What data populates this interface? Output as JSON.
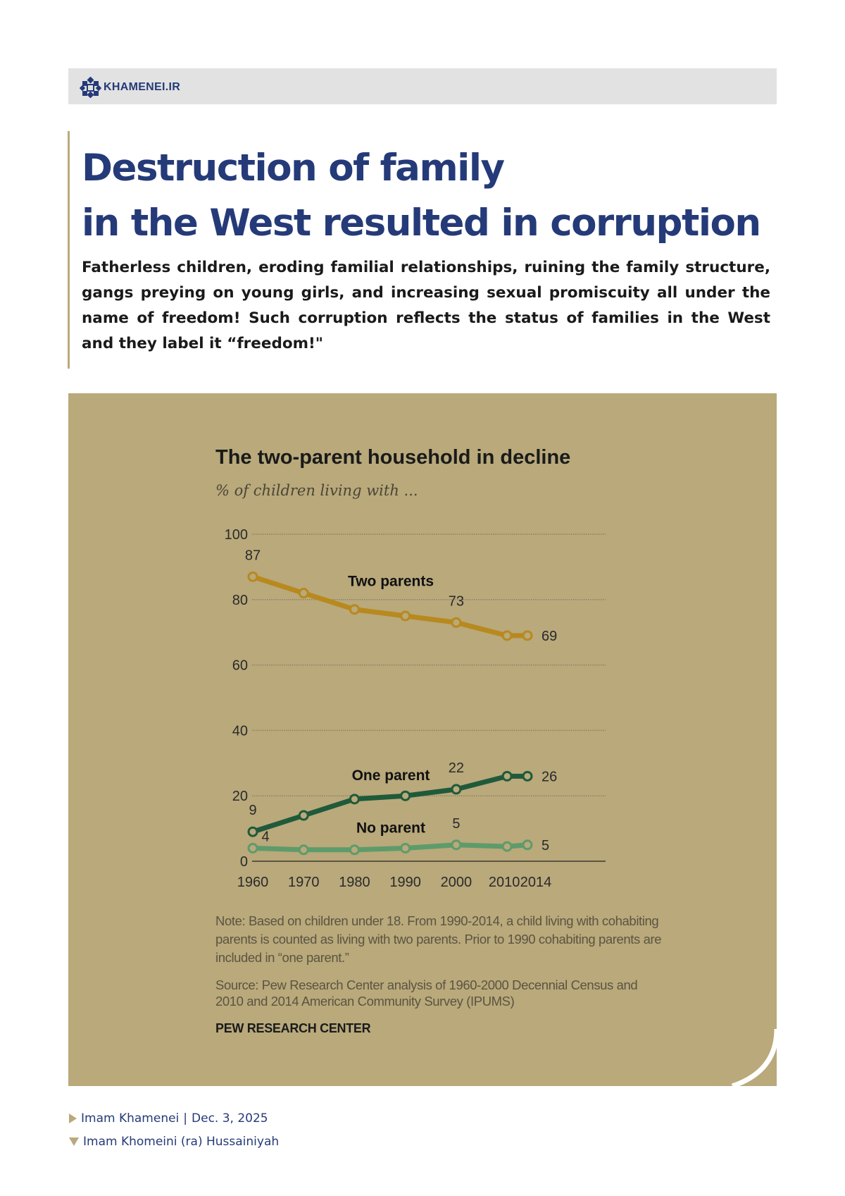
{
  "header": {
    "logo_text": "KHAMENEI.IR",
    "logo_icon": "star-pattern-logo"
  },
  "article": {
    "title_lines": [
      "Destruction of family",
      "in the West resulted in corruption"
    ],
    "lede": "Fatherless children, eroding familial relationships, ruining the family structure, gangs preying on young girls, and increasing sexual promiscuity all under the name of freedom! Such corruption reflects the status of families in the West and they label it “freedom!\""
  },
  "chart_data": {
    "type": "line",
    "title": "The two-parent household in decline",
    "subtitle": "% of children living with ...",
    "x": [
      1960,
      1970,
      1980,
      1990,
      2000,
      2010,
      2014
    ],
    "x_tick_labels": [
      "1960",
      "1970",
      "1980",
      "1990",
      "2000",
      "2010",
      "2014"
    ],
    "y_ticks": [
      0,
      20,
      40,
      60,
      80,
      100
    ],
    "ylim": [
      0,
      100
    ],
    "grid": "horizontal dotted",
    "series": [
      {
        "name": "Two parents",
        "color": "#b8891e",
        "values": [
          87,
          82,
          77,
          75,
          73,
          69,
          69
        ],
        "data_labels": {
          "1960": "87",
          "2000": "73",
          "2014": "69"
        }
      },
      {
        "name": "One parent",
        "color": "#1f5a3a",
        "values": [
          9,
          14,
          19,
          20,
          22,
          26,
          26
        ],
        "data_labels": {
          "1960": "9",
          "2000": "22",
          "2014": "26"
        }
      },
      {
        "name": "No parent",
        "color": "#5e9b6a",
        "values": [
          4,
          3.5,
          3.5,
          4,
          5,
          4.5,
          5
        ],
        "data_labels": {
          "1960": "4",
          "2000": "5",
          "2014": "5"
        }
      }
    ],
    "note": "Note: Based on children under 18. From 1990-2014, a child living with cohabiting parents is counted as living with two parents. Prior to 1990 cohabiting parents are included in “one parent.”",
    "source": "Source: Pew Research Center analysis of 1960-2000 Decennial Census and 2010 and 2014 American Community Survey (IPUMS)",
    "credit": "PEW RESEARCH CENTER"
  },
  "colors": {
    "brand_blue": "#253a78",
    "panel_tan": "#b9a97b",
    "header_gray": "#e2e2e2"
  },
  "footer": {
    "speaker": "Imam Khamenei",
    "separator": "|",
    "date": "Dec. 3, 2025",
    "location": "Imam Khomeini (ra) Hussainiyah"
  }
}
